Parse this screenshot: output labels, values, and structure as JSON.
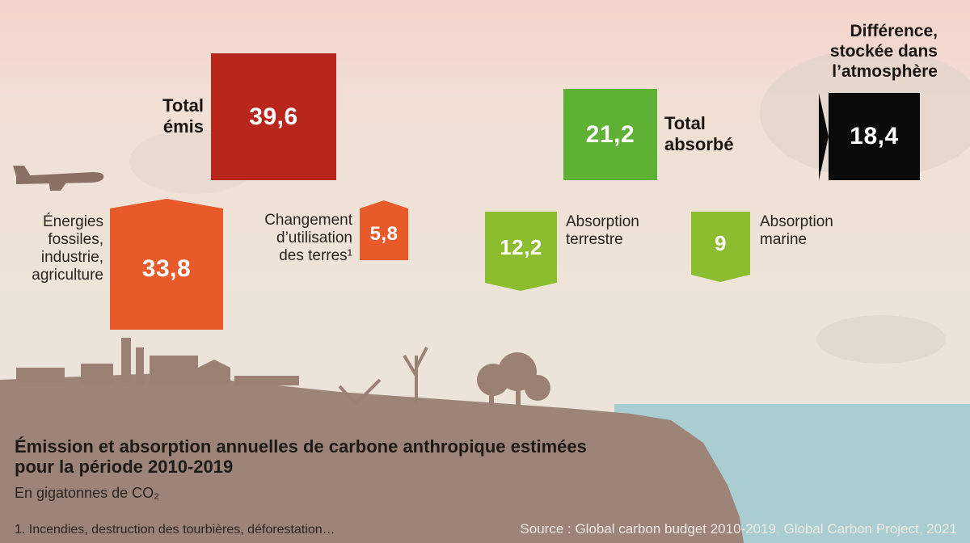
{
  "colors": {
    "total_emitted": "#b9271c",
    "emission": "#e85a2a",
    "total_absorbed": "#5fb136",
    "absorption": "#8cbd2e",
    "atmosphere": "#0a0a0a",
    "ground": "#9d8478",
    "sea": "#a9cdd0"
  },
  "icons": [
    "airplane-icon",
    "factory-silhouette",
    "tree-silhouette"
  ],
  "total_emitted": {
    "label": "Total\némis",
    "value": "39,6"
  },
  "fossil": {
    "label": "Énergies\nfossiles,\nindustrie,\nagriculture",
    "value": "33,8"
  },
  "land_use": {
    "label": "Changement\nd’utilisation\ndes terres¹",
    "value": "5,8"
  },
  "total_absorbed": {
    "label": "Total\nabsorbé",
    "value": "21,2"
  },
  "land_sink": {
    "label": "Absorption\nterrestre",
    "value": "12,2"
  },
  "ocean_sink": {
    "label": "Absorption\nmarine",
    "value": "9"
  },
  "atmosphere": {
    "label": "Différence,\nstockée dans\nl’atmosphère",
    "value": "18,4"
  },
  "title": "Émission et absorption annuelles de carbone anthropique estimées pour la période 2010-2019",
  "subtitle": "En gigatonnes de CO₂",
  "footnote": "1. Incendies, destruction des tourbières, déforestation…",
  "source": "Source : Global carbon budget 2010-2019, Global Carbon Project, 2021"
}
